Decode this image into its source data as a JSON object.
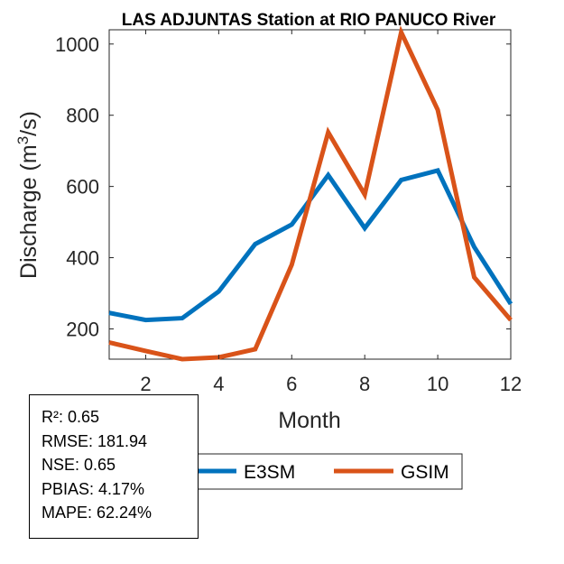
{
  "chart_data": {
    "type": "line",
    "title": "LAS ADJUNTAS  Station at  RIO PANUCO  River",
    "xlabel": "Month",
    "ylabel_prefix": "Discharge (m",
    "ylabel_sup": "3",
    "ylabel_suffix": "/s)",
    "x": [
      1,
      2,
      3,
      4,
      5,
      6,
      7,
      8,
      9,
      10,
      11,
      12
    ],
    "xlim": [
      1,
      12
    ],
    "ylim": [
      115,
      1040
    ],
    "xticks": [
      2,
      4,
      6,
      8,
      10,
      12
    ],
    "yticks": [
      200,
      400,
      600,
      800,
      1000
    ],
    "series": [
      {
        "name": "E3SM",
        "color": "#0072BD",
        "values": [
          245,
          225,
          230,
          305,
          438,
          493,
          632,
          483,
          618,
          645,
          430,
          270
        ]
      },
      {
        "name": "GSIM",
        "color": "#D95319",
        "values": [
          162,
          138,
          115,
          120,
          143,
          380,
          752,
          577,
          1033,
          815,
          345,
          225
        ]
      }
    ],
    "legend_position": "bottom"
  },
  "stats": [
    "R²: 0.65",
    "RMSE: 181.94",
    "NSE: 0.65",
    "PBIAS: 4.17%",
    "MAPE: 62.24%"
  ]
}
